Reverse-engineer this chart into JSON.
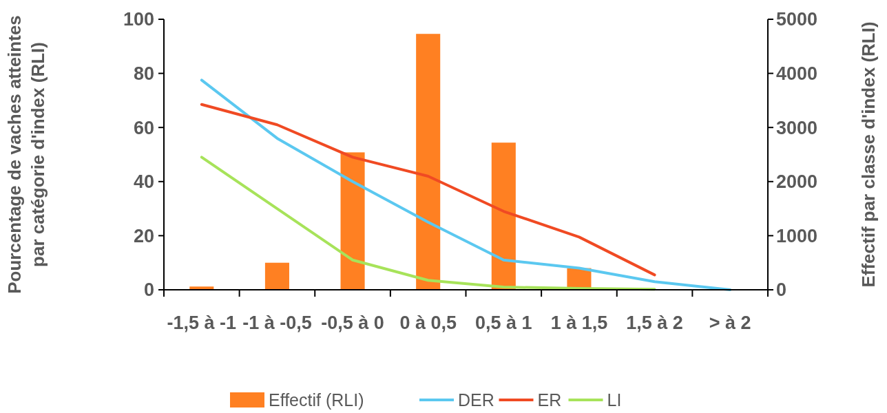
{
  "chart_data": {
    "type": "bar",
    "categories": [
      "-1,5 à -1",
      "-1 à -0,5",
      "-0,5 à 0",
      "0 à 0,5",
      "0,5 à 1",
      "1 à 1,5",
      "1,5 à 2",
      "> à 2"
    ],
    "ylabel": "Pourcentage de vaches atteintes par catégorie d'index (RLI)",
    "y2label": "Effectif par classe d'index (RLI)",
    "ylim": [
      0,
      100
    ],
    "yticks": [
      0,
      20,
      40,
      60,
      80,
      100
    ],
    "y2lim": [
      0,
      5000
    ],
    "y2ticks": [
      0,
      1000,
      2000,
      3000,
      4000,
      5000
    ],
    "legend": "bottom",
    "grid": false,
    "series": [
      {
        "name": "Effectif (RLI)",
        "axis": "y2",
        "color": "#ff8022",
        "values": [
          60,
          500,
          2540,
          4730,
          2720,
          400,
          0,
          0
        ]
      },
      {
        "name": "DER",
        "type": "line",
        "color": "#5bc8f0",
        "values": [
          77.5,
          56,
          40,
          25,
          11,
          8,
          3,
          0
        ]
      },
      {
        "name": "ER",
        "type": "line",
        "color": "#f04a23",
        "values": [
          68.5,
          61,
          49,
          42,
          29,
          19.5,
          5.5,
          null
        ]
      },
      {
        "name": "LI",
        "type": "line",
        "color": "#a7e35a",
        "values": [
          49,
          30,
          11,
          3.5,
          1,
          0.5,
          0.2,
          null
        ]
      }
    ]
  }
}
